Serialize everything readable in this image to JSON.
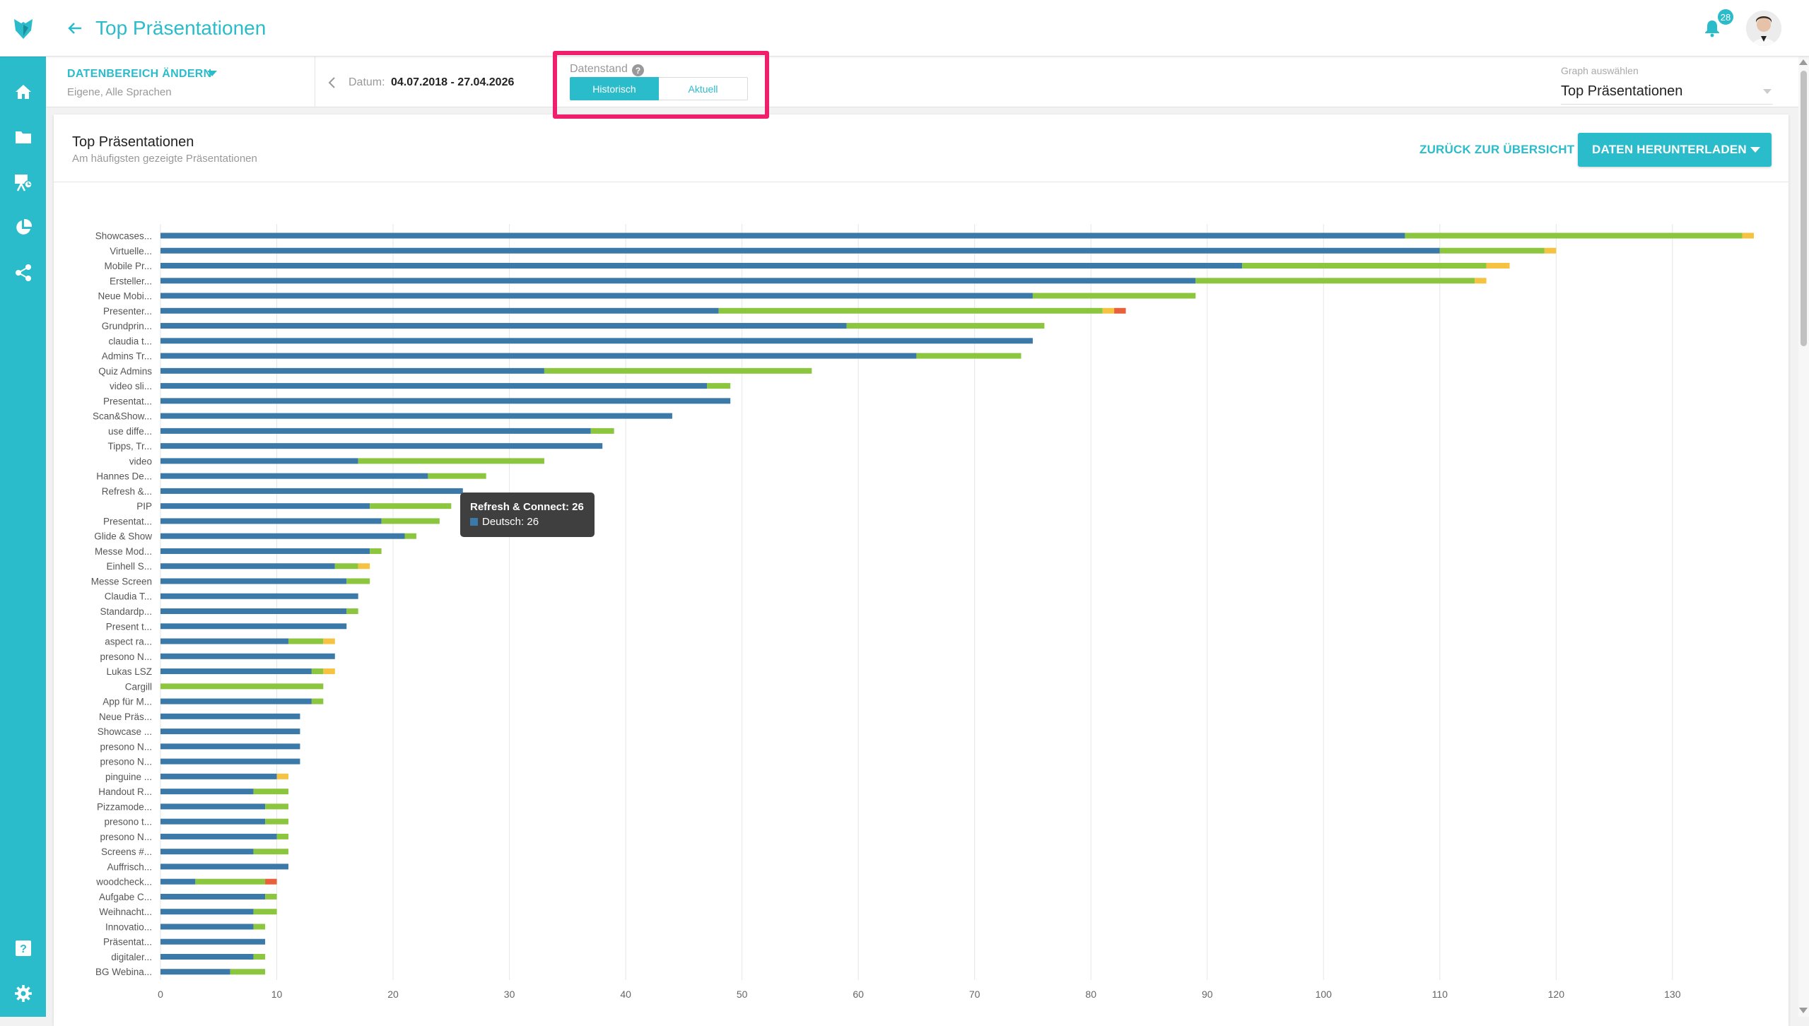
{
  "header": {
    "title": "Top Präsentationen",
    "notification_count": "28"
  },
  "filter": {
    "range_label": "DATENBEREICH ÄNDERN",
    "range_sub": "Eigene, Alle Sprachen",
    "date_label": "Datum:",
    "date_value": "04.07.2018 - 27.04.2026",
    "datenstand_label": "Datenstand",
    "toggle_historisch": "Historisch",
    "toggle_aktuell": "Aktuell",
    "graph_select_label": "Graph auswählen",
    "graph_select_value": "Top Präsentationen"
  },
  "card": {
    "title": "Top Präsentationen",
    "subtitle": "Am häufigsten gezeigte Präsentationen",
    "back_link": "ZURÜCK ZUR ÜBERSICHT",
    "download_label": "DATEN HERUNTERLADEN"
  },
  "tooltip": {
    "title": "Refresh & Connect: 26",
    "line": "Deutsch: 26"
  },
  "colors": {
    "accent": "#2bbccb",
    "highlight": "#ef1f6b",
    "series1": "#3b79a8",
    "series2": "#8cc63f",
    "series3": "#f5c242",
    "series4": "#e8603c"
  },
  "chart_data": {
    "type": "bar",
    "orientation": "horizontal",
    "stacked": true,
    "xlim": [
      0,
      137
    ],
    "xticks": [
      0,
      10,
      20,
      30,
      40,
      50,
      60,
      70,
      80,
      90,
      100,
      110,
      120,
      130
    ],
    "grid": true,
    "categories": [
      "Showcases...",
      "Virtuelle...",
      "Mobile Pr...",
      "Ersteller...",
      "Neue Mobi...",
      "Presenter...",
      "Grundprin...",
      "claudia t...",
      "Admins Tr...",
      "Quiz Admins",
      "video sli...",
      "Presentat...",
      "Scan&Show...",
      "use diffe...",
      "Tipps, Tr...",
      "video",
      "Hannes De...",
      "Refresh &...",
      "PIP",
      "Presentat...",
      "Glide & Show",
      "Messe Mod...",
      "Einhell S...",
      "Messe Screen",
      "Claudia T...",
      "Standardp...",
      "Present t...",
      "aspect ra...",
      "presono N...",
      "Lukas LSZ",
      "Cargill",
      "App für M...",
      "Neue Präs...",
      "Showcase ...",
      "presono N...",
      "presono N...",
      "pinguine ...",
      "Handout R...",
      "Pizzamode...",
      "presono t...",
      "presono N...",
      "Screens #...",
      "Auffrisch...",
      "woodcheck...",
      "Aufgabe C...",
      "Weihnacht...",
      "Innovatio...",
      "Präsentat...",
      "digitaler...",
      "BG Webina..."
    ],
    "series": [
      {
        "values": [
          107,
          110,
          93,
          89,
          75,
          48,
          59,
          75,
          65,
          33,
          47,
          49,
          44,
          37,
          38,
          17,
          23,
          26,
          18,
          19,
          21,
          18,
          15,
          16,
          17,
          16,
          16,
          11,
          15,
          13,
          0,
          13,
          12,
          12,
          12,
          12,
          10,
          8,
          9,
          9,
          10,
          8,
          11,
          3,
          9,
          8,
          8,
          9,
          8,
          6
        ]
      },
      {
        "values": [
          29,
          9,
          21,
          24,
          14,
          33,
          17,
          0,
          9,
          23,
          2,
          0,
          0,
          2,
          0,
          16,
          5,
          0,
          7,
          5,
          1,
          1,
          2,
          2,
          0,
          1,
          0,
          3,
          0,
          1,
          14,
          1,
          0,
          0,
          0,
          0,
          0,
          3,
          2,
          2,
          1,
          3,
          0,
          6,
          1,
          2,
          1,
          0,
          1,
          3
        ]
      },
      {
        "values": [
          1,
          1,
          2,
          1,
          0,
          1,
          0,
          0,
          0,
          0,
          0,
          0,
          0,
          0,
          0,
          0,
          0,
          0,
          0,
          0,
          0,
          0,
          1,
          0,
          0,
          0,
          0,
          1,
          0,
          1,
          0,
          0,
          0,
          0,
          0,
          0,
          1,
          0,
          0,
          0,
          0,
          0,
          0,
          0,
          0,
          0,
          0,
          0,
          0,
          0
        ]
      },
      {
        "values": [
          0,
          0,
          0,
          0,
          0,
          1,
          0,
          0,
          0,
          0,
          0,
          0,
          0,
          0,
          0,
          0,
          0,
          0,
          0,
          0,
          0,
          0,
          0,
          0,
          0,
          0,
          0,
          0,
          0,
          0,
          0,
          0,
          0,
          0,
          0,
          0,
          0,
          0,
          0,
          0,
          0,
          0,
          0,
          1,
          0,
          0,
          0,
          0,
          0,
          0
        ]
      }
    ]
  }
}
